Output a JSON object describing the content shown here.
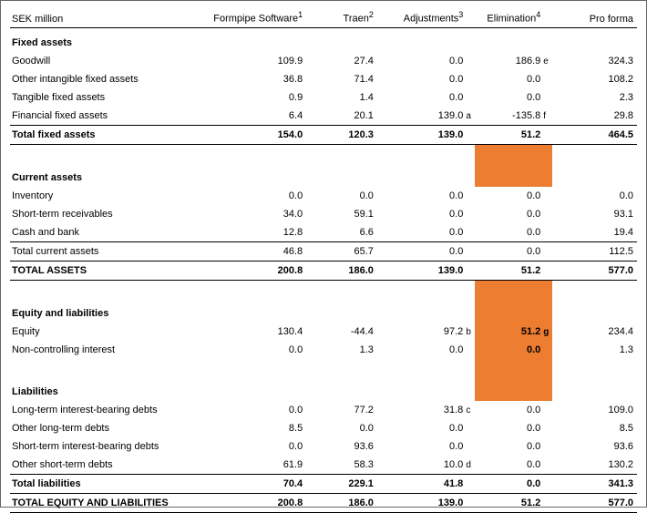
{
  "header": {
    "unit": "SEK million",
    "cols": [
      {
        "label": "Formpipe Software",
        "sup": "1"
      },
      {
        "label": "Traen",
        "sup": "2"
      },
      {
        "label": "Adjustments",
        "sup": "3"
      },
      {
        "label": "Elimination",
        "sup": "4"
      },
      {
        "label": "Pro forma",
        "sup": ""
      }
    ]
  },
  "colors": {
    "highlight": "#ed7d31",
    "border": "#000000",
    "text": "#000000",
    "background": "#ffffff"
  },
  "rows": [
    {
      "type": "section",
      "label": "Fixed assets"
    },
    {
      "type": "data",
      "label": "Goodwill",
      "v": [
        "109.9",
        "27.4",
        "0.0",
        "186.9",
        "324.3"
      ],
      "n1": "",
      "n2": "e"
    },
    {
      "type": "data",
      "label": "Other intangible fixed assets",
      "v": [
        "36.8",
        "71.4",
        "0.0",
        "0.0",
        "108.2"
      ],
      "n1": "",
      "n2": ""
    },
    {
      "type": "data",
      "label": "Tangible fixed assets",
      "v": [
        "0.9",
        "1.4",
        "0.0",
        "0.0",
        "2.3"
      ],
      "n1": "",
      "n2": ""
    },
    {
      "type": "data",
      "label": "Financial fixed assets",
      "v": [
        "6.4",
        "20.1",
        "139.0",
        "-135.8",
        "29.8"
      ],
      "n1": "a",
      "n2": "f",
      "class": "line-bottom"
    },
    {
      "type": "total",
      "label": "Total fixed assets",
      "v": [
        "154.0",
        "120.3",
        "139.0",
        "51.2",
        "464.5"
      ],
      "class": "bold line-bottom"
    },
    {
      "type": "spacer",
      "hl": true
    },
    {
      "type": "section",
      "label": "Current assets",
      "hl": true
    },
    {
      "type": "data",
      "label": "Inventory",
      "v": [
        "0.0",
        "0.0",
        "0.0",
        "0.0",
        "0.0"
      ]
    },
    {
      "type": "data",
      "label": "Short-term receivables",
      "v": [
        "34.0",
        "59.1",
        "0.0",
        "0.0",
        "93.1"
      ]
    },
    {
      "type": "data",
      "label": "Cash and bank",
      "v": [
        "12.8",
        "6.6",
        "0.0",
        "0.0",
        "19.4"
      ],
      "class": "line-bottom"
    },
    {
      "type": "data",
      "label": "Total current assets",
      "v": [
        "46.8",
        "65.7",
        "0.0",
        "0.0",
        "112.5"
      ],
      "class": "line-bottom"
    },
    {
      "type": "total",
      "label": "TOTAL ASSETS",
      "v": [
        "200.8",
        "186.0",
        "139.0",
        "51.2",
        "577.0"
      ],
      "class": "bold line-bottom"
    },
    {
      "type": "spacer",
      "hl": true
    },
    {
      "type": "section",
      "label": "Equity and liabilities",
      "hl": true
    },
    {
      "type": "data",
      "label": "Equity",
      "v": [
        "130.4",
        "-44.4",
        "97.2",
        "51.2",
        "234.4"
      ],
      "n1": "b",
      "n2": "g",
      "hl": true,
      "hlbold": true
    },
    {
      "type": "data",
      "label": "Non-controlling interest",
      "v": [
        "0.0",
        "1.3",
        "0.0",
        "0.0",
        "1.3"
      ],
      "hl": true,
      "hlbold": true
    },
    {
      "type": "spacer",
      "hl": true
    },
    {
      "type": "section",
      "label": "Liabilities",
      "hl": true
    },
    {
      "type": "data",
      "label": "Long-term interest-bearing debts",
      "v": [
        "0.0",
        "77.2",
        "31.8",
        "0.0",
        "109.0"
      ],
      "n1": "c",
      "n2": ""
    },
    {
      "type": "data",
      "label": "Other long-term debts",
      "v": [
        "8.5",
        "0.0",
        "0.0",
        "0.0",
        "8.5"
      ]
    },
    {
      "type": "data",
      "label": "Short-term interest-bearing debts",
      "v": [
        "0.0",
        "93.6",
        "0.0",
        "0.0",
        "93.6"
      ]
    },
    {
      "type": "data",
      "label": "Other short-term debts",
      "v": [
        "61.9",
        "58.3",
        "10.0",
        "0.0",
        "130.2"
      ],
      "n1": "d",
      "n2": "",
      "class": "line-bottom"
    },
    {
      "type": "total",
      "label": "Total liabilities",
      "v": [
        "70.4",
        "229.1",
        "41.8",
        "0.0",
        "341.3"
      ],
      "class": "bold line-bottom"
    },
    {
      "type": "total",
      "label": "TOTAL EQUITY AND LIABILITIES",
      "v": [
        "200.8",
        "186.0",
        "139.0",
        "51.2",
        "577.0"
      ],
      "class": "bold line-bottom"
    }
  ]
}
